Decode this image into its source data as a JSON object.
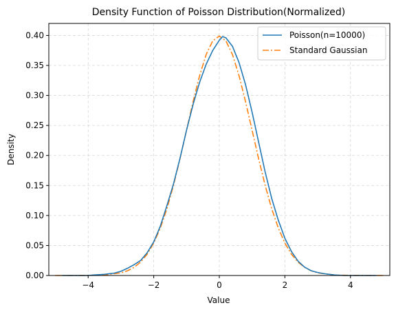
{
  "chart_data": {
    "type": "line",
    "title": "Density Function of Poisson Distribution(Normalized)",
    "xlabel": "Value",
    "ylabel": "Density",
    "xlim": [
      -5.2,
      5.2
    ],
    "ylim": [
      0,
      0.42
    ],
    "xticks": [
      -4,
      -2,
      0,
      2,
      4
    ],
    "xtick_labels": [
      "−4",
      "−2",
      "0",
      "2",
      "4"
    ],
    "yticks": [
      0.0,
      0.05,
      0.1,
      0.15,
      0.2,
      0.25,
      0.3,
      0.35,
      0.4
    ],
    "ytick_labels": [
      "0.00",
      "0.05",
      "0.10",
      "0.15",
      "0.20",
      "0.25",
      "0.30",
      "0.35",
      "0.40"
    ],
    "grid": true,
    "legend_position": "top-right",
    "series": [
      {
        "name": "Poisson(n=10000)",
        "color": "#1f77b4",
        "style": "solid",
        "x": [
          -4.8,
          -4.5,
          -4.0,
          -3.8,
          -3.5,
          -3.2,
          -3.0,
          -2.8,
          -2.6,
          -2.4,
          -2.2,
          -2.0,
          -1.8,
          -1.6,
          -1.4,
          -1.2,
          -1.0,
          -0.8,
          -0.6,
          -0.4,
          -0.2,
          0.0,
          0.1,
          0.2,
          0.4,
          0.6,
          0.8,
          1.0,
          1.2,
          1.4,
          1.6,
          1.8,
          2.0,
          2.2,
          2.4,
          2.6,
          2.8,
          3.0,
          3.2,
          3.5,
          3.8,
          4.0,
          4.4,
          4.8
        ],
        "y": [
          0.0,
          0.0,
          0.0,
          0.001,
          0.002,
          0.004,
          0.007,
          0.012,
          0.018,
          0.025,
          0.038,
          0.056,
          0.082,
          0.116,
          0.152,
          0.195,
          0.242,
          0.285,
          0.322,
          0.352,
          0.375,
          0.392,
          0.398,
          0.396,
          0.382,
          0.355,
          0.318,
          0.272,
          0.222,
          0.172,
          0.128,
          0.092,
          0.062,
          0.04,
          0.024,
          0.014,
          0.008,
          0.005,
          0.003,
          0.001,
          0.0,
          0.0,
          0.0,
          0.0
        ]
      },
      {
        "name": "Standard Gaussian",
        "color": "#ff7f0e",
        "style": "dashdot",
        "x": [
          -5.0,
          -4.5,
          -4.0,
          -3.5,
          -3.0,
          -2.8,
          -2.6,
          -2.4,
          -2.2,
          -2.0,
          -1.8,
          -1.6,
          -1.4,
          -1.2,
          -1.0,
          -0.8,
          -0.6,
          -0.4,
          -0.2,
          0.0,
          0.2,
          0.4,
          0.6,
          0.8,
          1.0,
          1.2,
          1.4,
          1.6,
          1.8,
          2.0,
          2.2,
          2.4,
          2.6,
          2.8,
          3.0,
          3.5,
          4.0,
          4.5,
          5.0
        ],
        "y": [
          0.0,
          0.0,
          0.0001,
          0.0009,
          0.0044,
          0.0079,
          0.0136,
          0.0224,
          0.0355,
          0.054,
          0.079,
          0.1109,
          0.1497,
          0.1942,
          0.242,
          0.2897,
          0.3332,
          0.3683,
          0.391,
          0.3989,
          0.391,
          0.3683,
          0.3332,
          0.2897,
          0.242,
          0.1942,
          0.1497,
          0.1109,
          0.079,
          0.054,
          0.0355,
          0.0224,
          0.0136,
          0.0079,
          0.0044,
          0.0009,
          0.0001,
          0.0,
          0.0
        ]
      }
    ]
  }
}
